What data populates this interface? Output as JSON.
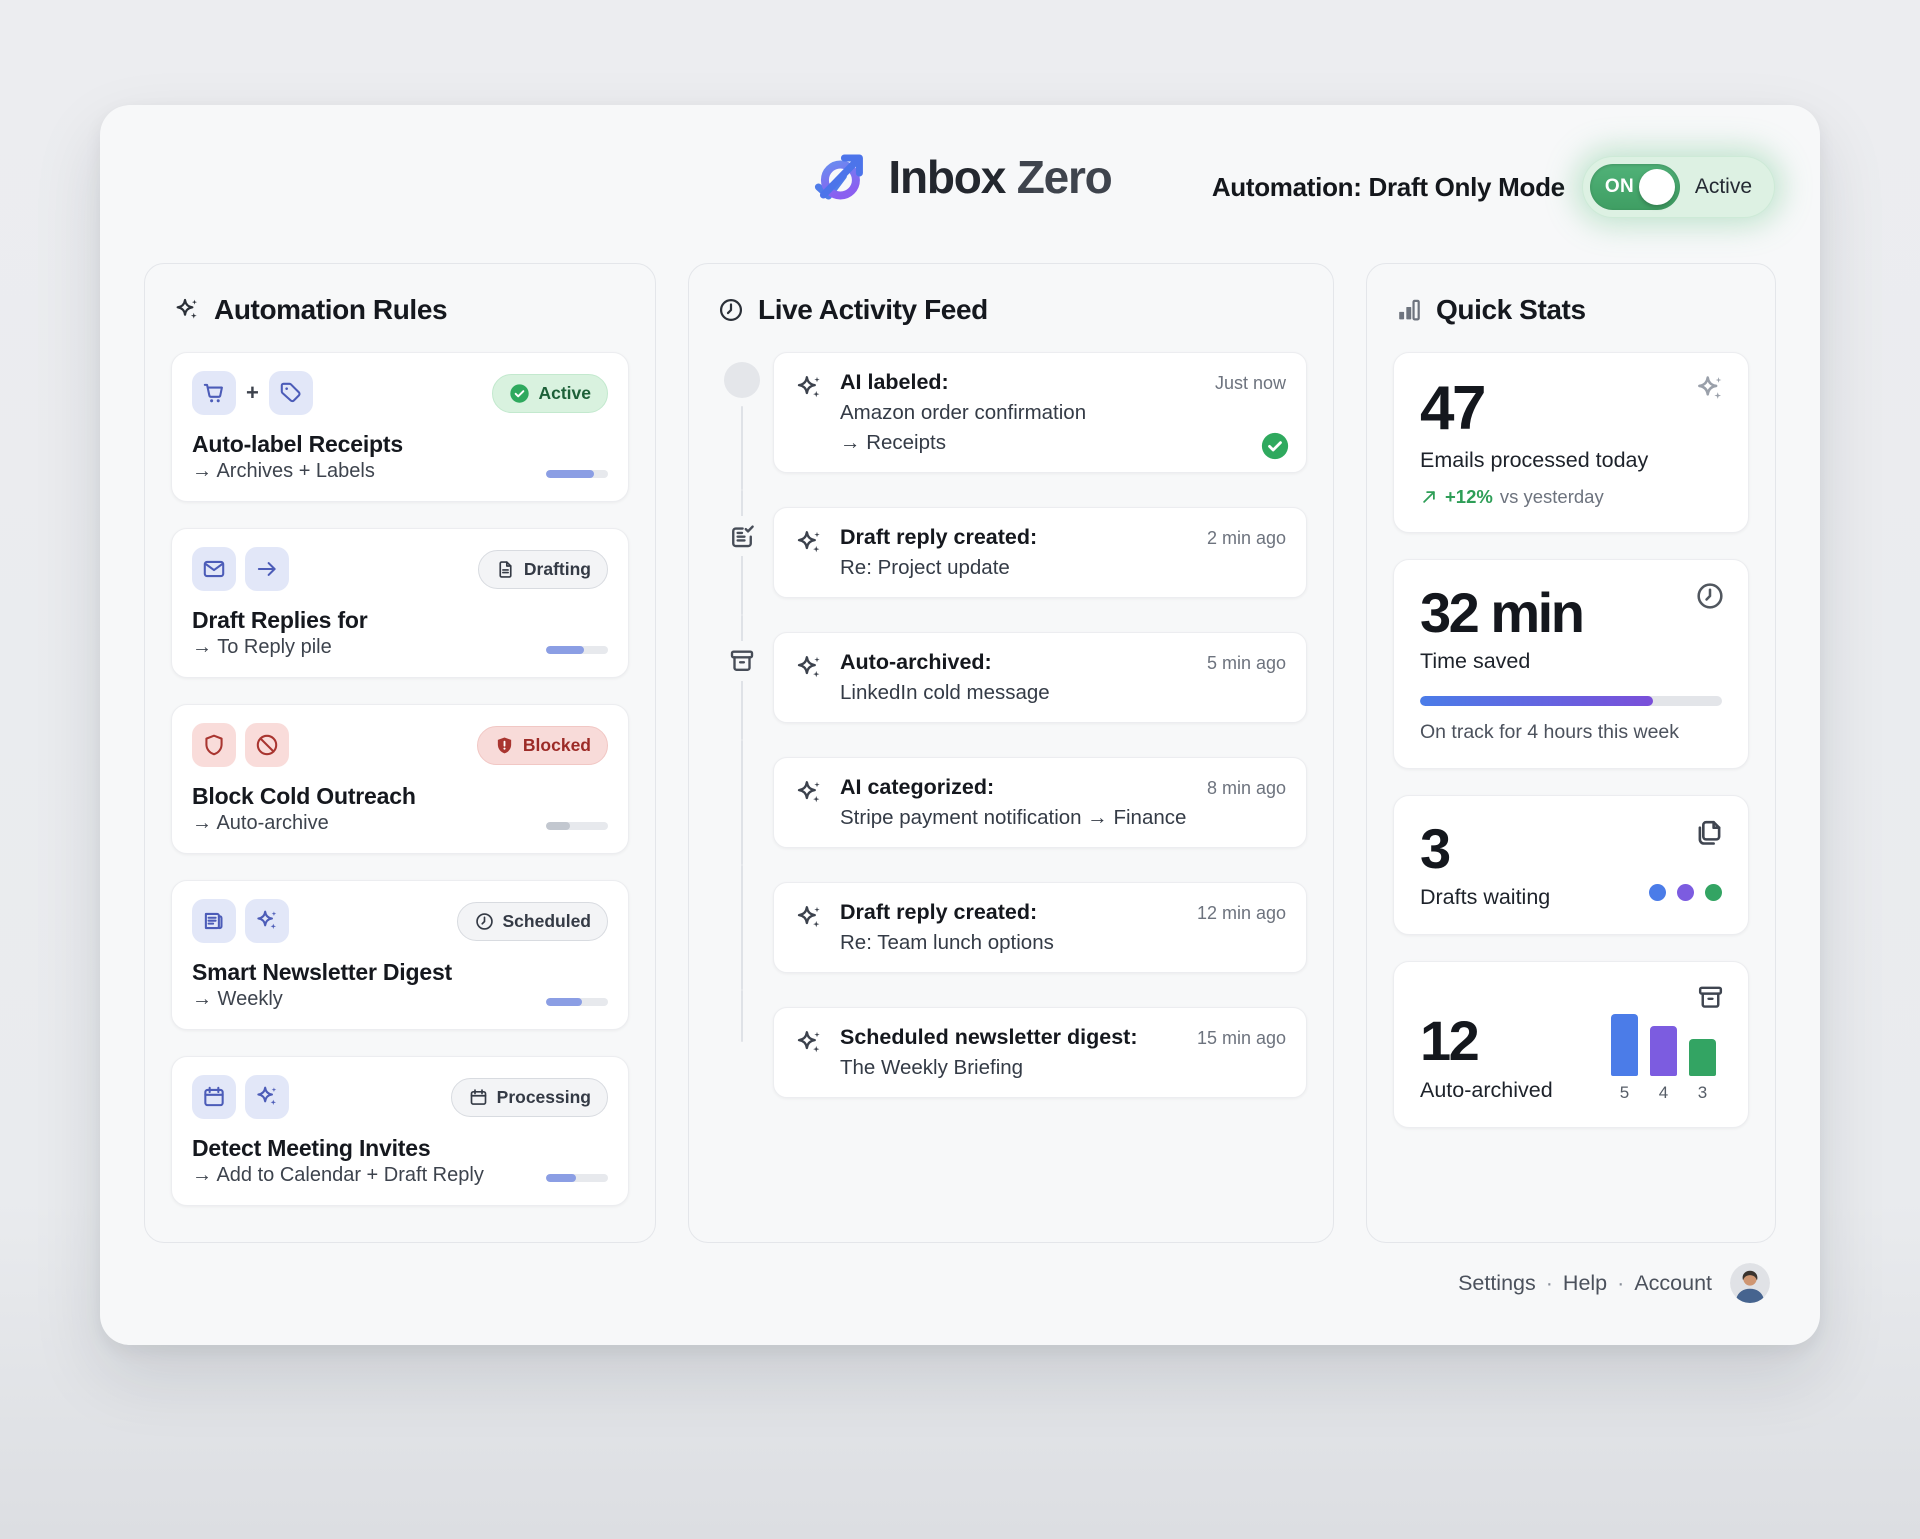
{
  "header": {
    "brand": {
      "logo_icon": "inbox-zero-logo",
      "name_primary": "Inbox",
      "name_secondary": "Zero"
    },
    "automation_label": "Automation: Draft Only Mode",
    "toggle": {
      "state_label": "ON",
      "status_label": "Active"
    }
  },
  "automation_rules": {
    "title": "Automation Rules",
    "header_icon": "sparkles",
    "items": [
      {
        "icons": [
          "cart",
          "plus",
          "tag"
        ],
        "icon_theme": "indigo",
        "badge": {
          "label": "Active",
          "style": "active",
          "icon": "check-circle"
        },
        "title": "Auto-label Receipts",
        "action": "→ Archives + Labels",
        "progress_percent": 78,
        "progress_style": "indigo"
      },
      {
        "icons": [
          "mail",
          "arrow-right"
        ],
        "icon_theme": "indigo",
        "badge": {
          "label": "Drafting",
          "style": "neutral",
          "icon": "document"
        },
        "title": "Draft Replies for",
        "action": "→ To Reply pile",
        "progress_percent": 62,
        "progress_style": "indigo"
      },
      {
        "icons": [
          "shield",
          "ban"
        ],
        "icon_theme": "red",
        "badge": {
          "label": "Blocked",
          "style": "blocked",
          "icon": "shield-alert"
        },
        "title": "Block Cold Outreach",
        "action": "→ Auto-archive",
        "progress_percent": 38,
        "progress_style": "gray"
      },
      {
        "icons": [
          "newspaper",
          "sparkles"
        ],
        "icon_theme": "indigo",
        "badge": {
          "label": "Scheduled",
          "style": "neutral",
          "icon": "clock"
        },
        "title": "Smart Newsletter Digest",
        "action": "→ Weekly",
        "progress_percent": 58,
        "progress_style": "indigo"
      },
      {
        "icons": [
          "calendar",
          "sparkles"
        ],
        "icon_theme": "indigo",
        "badge": {
          "label": "Processing",
          "style": "neutral",
          "icon": "calendar"
        },
        "title": "Detect Meeting Invites",
        "action": "→ Add to Calendar + Draft Reply",
        "progress_percent": 48,
        "progress_style": "indigo"
      }
    ]
  },
  "activity_feed": {
    "title": "Live Activity Feed",
    "header_icon": "clock",
    "items": [
      {
        "marker": "dot",
        "icon": "sparkles",
        "title": "AI labeled:",
        "lines": [
          "Amazon order confirmation",
          "→ Receipts"
        ],
        "time": "Just now",
        "status_icon": "check-circle"
      },
      {
        "marker": "note-check",
        "icon": "sparkles",
        "title": "Draft reply created:",
        "lines": [
          "Re: Project update"
        ],
        "time": "2 min ago"
      },
      {
        "marker": "archive",
        "icon": "sparkles",
        "title": "Auto-archived:",
        "lines": [
          "LinkedIn cold message"
        ],
        "time": "5 min ago"
      },
      {
        "marker": "none",
        "icon": "sparkles",
        "title": "AI categorized:",
        "lines": [
          "Stripe payment notification → Finance"
        ],
        "time": "8 min ago"
      },
      {
        "marker": "none",
        "icon": "sparkles",
        "title": "Draft reply created:",
        "lines": [
          "Re: Team lunch options"
        ],
        "time": "12 min ago"
      },
      {
        "marker": "none",
        "icon": "sparkles",
        "title": "Scheduled newsletter digest:",
        "lines": [
          "The Weekly Briefing"
        ],
        "time": "15 min ago"
      }
    ]
  },
  "quick_stats": {
    "title": "Quick Stats",
    "header_icon": "bar-chart",
    "emails_processed": {
      "corner_icon": "sparkles",
      "value": "47",
      "label": "Emails processed today",
      "trend_icon": "arrow-up-right",
      "delta": "+12%",
      "delta_note": "vs yesterday"
    },
    "time_saved": {
      "corner_icon": "clock",
      "value": "32 min",
      "label": "Time saved",
      "progress_percent": 77,
      "caption": "On track for 4 hours this week"
    },
    "drafts_waiting": {
      "corner_icon": "pages",
      "value": "3",
      "label": "Drafts waiting",
      "dot_colors": [
        "#4b7ce8",
        "#7c5ce0",
        "#33a463"
      ]
    },
    "auto_archived": {
      "corner_icon": "archive",
      "value": "12",
      "label": "Auto-archived",
      "chart_data": {
        "type": "bar",
        "categories": [
          "5",
          "4",
          "3"
        ],
        "values": [
          5,
          4,
          3
        ],
        "colors": [
          "#4b7ce8",
          "#7c5ce0",
          "#33a463"
        ]
      }
    }
  },
  "footer": {
    "links": [
      "Settings",
      "Help",
      "Account"
    ],
    "separator": "·",
    "avatar_icon": "user-avatar"
  },
  "colors": {
    "toggle_green": "#46a76d",
    "badge_active_bg": "#d9f2df",
    "badge_blocked_bg": "#f8dbd9",
    "chip_indigo_bg": "#e2e7f8",
    "chip_red_bg": "#f9dcda",
    "progress_indigo": "#8b9ee4",
    "gradient_blue": "#4a7ce8",
    "gradient_purple": "#7a4fd9",
    "success_green": "#2fa95e"
  }
}
